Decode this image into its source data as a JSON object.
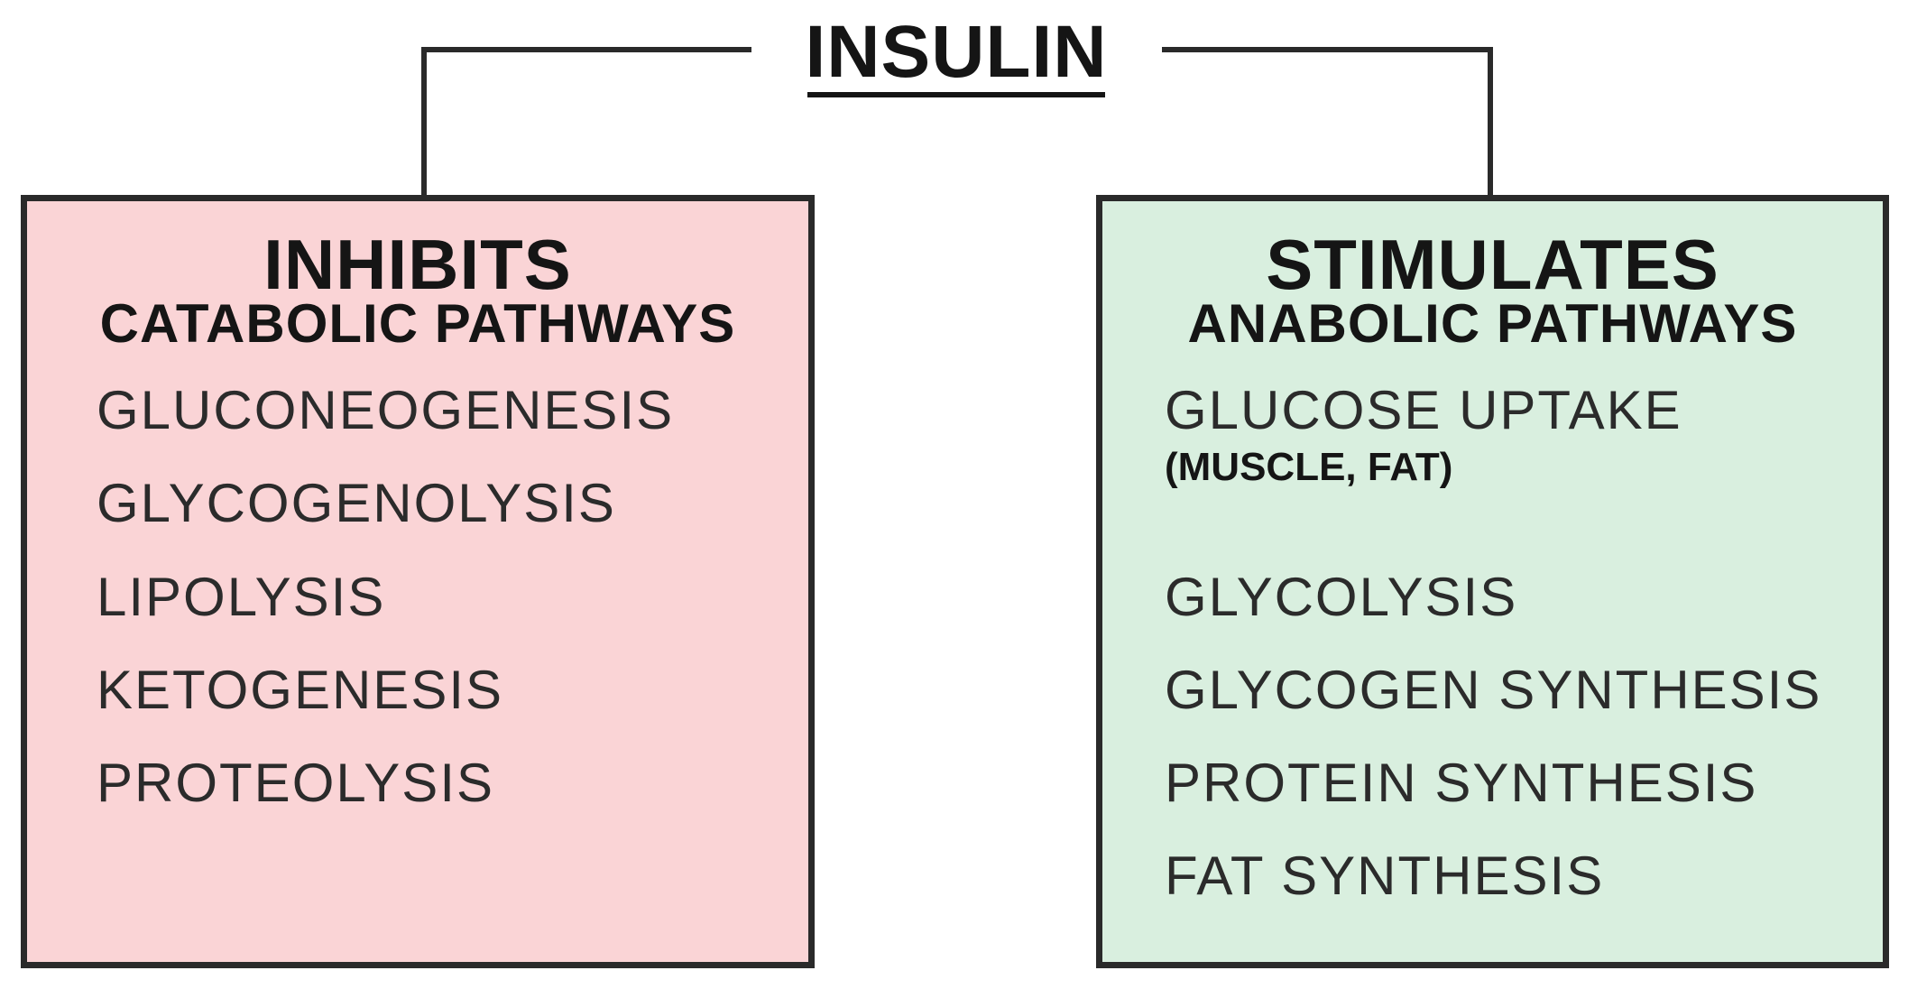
{
  "title": "INSULIN",
  "colors": {
    "inhibits_fill": "#fad4d6",
    "stimulates_fill": "#d9efdf",
    "border": "#2a2a2a",
    "text": "#151515"
  },
  "inhibits": {
    "heading": "INHIBITS",
    "subheading": "CATABOLIC PATHWAYS",
    "items": [
      "GLUCONEOGENESIS",
      "GLYCOGENOLYSIS",
      "LIPOLYSIS",
      "KETOGENESIS",
      "PROTEOLYSIS"
    ]
  },
  "stimulates": {
    "heading": "STIMULATES",
    "subheading": "ANABOLIC PATHWAYS",
    "items": [
      "GLUCOSE UPTAKE",
      "GLYCOLYSIS",
      "GLYCOGEN SYNTHESIS",
      "PROTEIN SYNTHESIS",
      "FAT SYNTHESIS"
    ],
    "glucose_uptake_note": "(MUSCLE, FAT)"
  }
}
